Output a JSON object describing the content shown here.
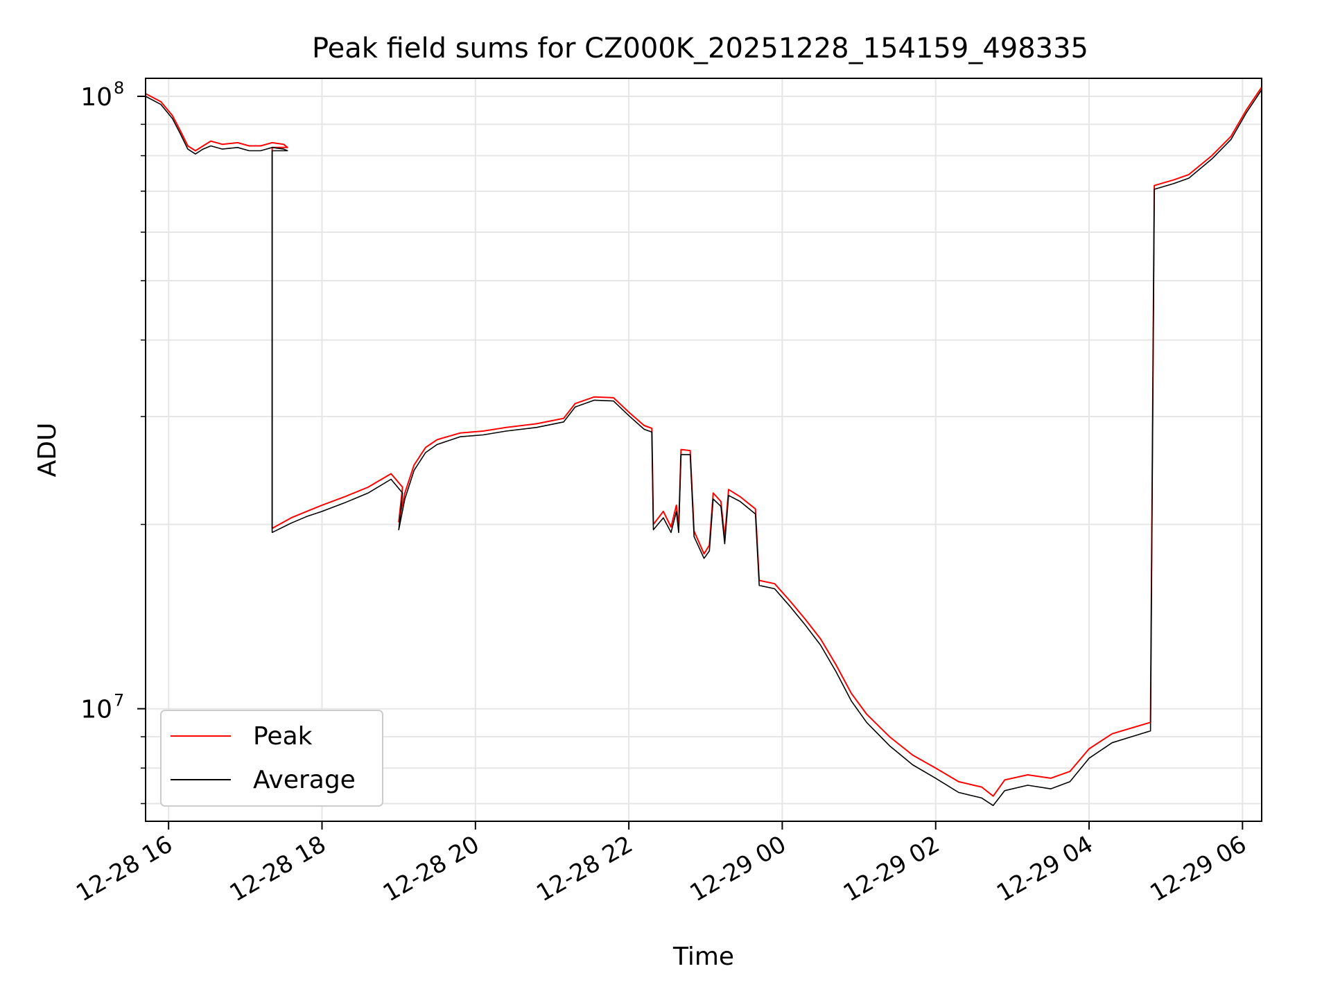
{
  "chart_data": {
    "type": "line",
    "title": "Peak field sums for CZ000K_20251228_154159_498335",
    "xlabel": "Time",
    "ylabel": "ADU",
    "yscale": "log",
    "xlim": [
      -0.3,
      14.25
    ],
    "ylim": [
      6550000,
      107000000
    ],
    "grid": true,
    "legend_position": "lower-left",
    "x_ticks": [
      {
        "value": 0,
        "label": "12-28 16"
      },
      {
        "value": 2,
        "label": "12-28 18"
      },
      {
        "value": 4,
        "label": "12-28 20"
      },
      {
        "value": 6,
        "label": "12-28 22"
      },
      {
        "value": 8,
        "label": "12-29 00"
      },
      {
        "value": 10,
        "label": "12-29 02"
      },
      {
        "value": 12,
        "label": "12-29 04"
      },
      {
        "value": 14,
        "label": "12-29 06"
      }
    ],
    "y_major_ticks": [
      {
        "value": 10000000,
        "base": "10",
        "exp": "7"
      },
      {
        "value": 100000000,
        "base": "10",
        "exp": "8"
      }
    ],
    "x_units": "hours since 12-28 16:00",
    "series": [
      {
        "name": "Peak",
        "color": "#ff0000",
        "points": [
          [
            -0.3,
            101000000
          ],
          [
            -0.1,
            98000000
          ],
          [
            0.05,
            93000000
          ],
          [
            0.15,
            88000000
          ],
          [
            0.25,
            83000000
          ],
          [
            0.35,
            81500000
          ],
          [
            0.45,
            83000000
          ],
          [
            0.55,
            84500000
          ],
          [
            0.7,
            83500000
          ],
          [
            0.9,
            84000000
          ],
          [
            1.05,
            83000000
          ],
          [
            1.2,
            83000000
          ],
          [
            1.35,
            84000000
          ],
          [
            1.5,
            83500000
          ],
          [
            1.55,
            82500000
          ],
          [
            1.35,
            82500000
          ],
          [
            1.35,
            19700000
          ],
          [
            1.6,
            20500000
          ],
          [
            1.8,
            21000000
          ],
          [
            2.0,
            21500000
          ],
          [
            2.3,
            22200000
          ],
          [
            2.6,
            23000000
          ],
          [
            2.9,
            24200000
          ],
          [
            3.05,
            23000000
          ],
          [
            3.0,
            20200000
          ],
          [
            3.08,
            22500000
          ],
          [
            3.2,
            25000000
          ],
          [
            3.35,
            26700000
          ],
          [
            3.5,
            27500000
          ],
          [
            3.8,
            28200000
          ],
          [
            4.1,
            28400000
          ],
          [
            4.4,
            28800000
          ],
          [
            4.8,
            29200000
          ],
          [
            5.15,
            29800000
          ],
          [
            5.3,
            31500000
          ],
          [
            5.55,
            32300000
          ],
          [
            5.8,
            32200000
          ],
          [
            6.0,
            30500000
          ],
          [
            6.2,
            29000000
          ],
          [
            6.3,
            28700000
          ],
          [
            6.32,
            20000000
          ],
          [
            6.45,
            21000000
          ],
          [
            6.55,
            19800000
          ],
          [
            6.62,
            21500000
          ],
          [
            6.65,
            19800000
          ],
          [
            6.68,
            26500000
          ],
          [
            6.8,
            26400000
          ],
          [
            6.85,
            19500000
          ],
          [
            6.98,
            17900000
          ],
          [
            7.05,
            18500000
          ],
          [
            7.1,
            22500000
          ],
          [
            7.2,
            21800000
          ],
          [
            7.25,
            19000000
          ],
          [
            7.3,
            22800000
          ],
          [
            7.45,
            22200000
          ],
          [
            7.65,
            21200000
          ],
          [
            7.7,
            16200000
          ],
          [
            7.9,
            16000000
          ],
          [
            8.1,
            15000000
          ],
          [
            8.3,
            14000000
          ],
          [
            8.5,
            13000000
          ],
          [
            8.7,
            11800000
          ],
          [
            8.9,
            10600000
          ],
          [
            9.1,
            9800000
          ],
          [
            9.4,
            9000000
          ],
          [
            9.7,
            8400000
          ],
          [
            10.0,
            8000000
          ],
          [
            10.3,
            7600000
          ],
          [
            10.6,
            7450000
          ],
          [
            10.75,
            7200000
          ],
          [
            10.9,
            7650000
          ],
          [
            11.2,
            7800000
          ],
          [
            11.5,
            7700000
          ],
          [
            11.75,
            7900000
          ],
          [
            12.0,
            8600000
          ],
          [
            12.3,
            9100000
          ],
          [
            12.55,
            9300000
          ],
          [
            12.8,
            9500000
          ],
          [
            12.85,
            71500000
          ],
          [
            13.1,
            73000000
          ],
          [
            13.3,
            74500000
          ],
          [
            13.6,
            80000000
          ],
          [
            13.85,
            86000000
          ],
          [
            14.05,
            95000000
          ],
          [
            14.25,
            103500000
          ]
        ]
      },
      {
        "name": "Average",
        "color": "#000000",
        "points": [
          [
            -0.3,
            100000000
          ],
          [
            -0.1,
            97000000
          ],
          [
            0.05,
            92000000
          ],
          [
            0.15,
            87000000
          ],
          [
            0.25,
            82000000
          ],
          [
            0.35,
            80500000
          ],
          [
            0.45,
            82000000
          ],
          [
            0.55,
            83000000
          ],
          [
            0.7,
            82000000
          ],
          [
            0.9,
            82500000
          ],
          [
            1.05,
            81500000
          ],
          [
            1.2,
            81500000
          ],
          [
            1.35,
            82500000
          ],
          [
            1.5,
            82000000
          ],
          [
            1.55,
            81500000
          ],
          [
            1.35,
            81500000
          ],
          [
            1.35,
            19400000
          ],
          [
            1.6,
            20100000
          ],
          [
            1.8,
            20600000
          ],
          [
            2.0,
            21000000
          ],
          [
            2.3,
            21700000
          ],
          [
            2.6,
            22500000
          ],
          [
            2.9,
            23700000
          ],
          [
            3.05,
            22500000
          ],
          [
            3.0,
            19600000
          ],
          [
            3.08,
            22000000
          ],
          [
            3.2,
            24500000
          ],
          [
            3.35,
            26200000
          ],
          [
            3.5,
            27000000
          ],
          [
            3.8,
            27800000
          ],
          [
            4.1,
            28000000
          ],
          [
            4.4,
            28400000
          ],
          [
            4.8,
            28800000
          ],
          [
            5.15,
            29400000
          ],
          [
            5.3,
            31100000
          ],
          [
            5.55,
            31900000
          ],
          [
            5.8,
            31800000
          ],
          [
            6.0,
            30100000
          ],
          [
            6.2,
            28600000
          ],
          [
            6.3,
            28300000
          ],
          [
            6.32,
            19600000
          ],
          [
            6.45,
            20500000
          ],
          [
            6.55,
            19400000
          ],
          [
            6.62,
            21000000
          ],
          [
            6.65,
            19400000
          ],
          [
            6.68,
            26000000
          ],
          [
            6.8,
            26000000
          ],
          [
            6.85,
            19100000
          ],
          [
            6.98,
            17600000
          ],
          [
            7.05,
            18100000
          ],
          [
            7.1,
            22000000
          ],
          [
            7.2,
            21400000
          ],
          [
            7.25,
            18600000
          ],
          [
            7.3,
            22300000
          ],
          [
            7.45,
            21800000
          ],
          [
            7.65,
            20800000
          ],
          [
            7.7,
            15900000
          ],
          [
            7.9,
            15700000
          ],
          [
            8.1,
            14700000
          ],
          [
            8.3,
            13700000
          ],
          [
            8.5,
            12700000
          ],
          [
            8.7,
            11500000
          ],
          [
            8.9,
            10300000
          ],
          [
            9.1,
            9500000
          ],
          [
            9.4,
            8700000
          ],
          [
            9.7,
            8100000
          ],
          [
            10.0,
            7700000
          ],
          [
            10.3,
            7300000
          ],
          [
            10.6,
            7150000
          ],
          [
            10.75,
            6950000
          ],
          [
            10.9,
            7350000
          ],
          [
            11.2,
            7500000
          ],
          [
            11.5,
            7400000
          ],
          [
            11.75,
            7600000
          ],
          [
            12.0,
            8300000
          ],
          [
            12.3,
            8800000
          ],
          [
            12.55,
            9000000
          ],
          [
            12.8,
            9200000
          ],
          [
            12.85,
            70500000
          ],
          [
            13.1,
            72000000
          ],
          [
            13.3,
            73500000
          ],
          [
            13.6,
            79000000
          ],
          [
            13.85,
            85000000
          ],
          [
            14.05,
            94000000
          ],
          [
            14.25,
            102500000
          ]
        ]
      }
    ]
  }
}
